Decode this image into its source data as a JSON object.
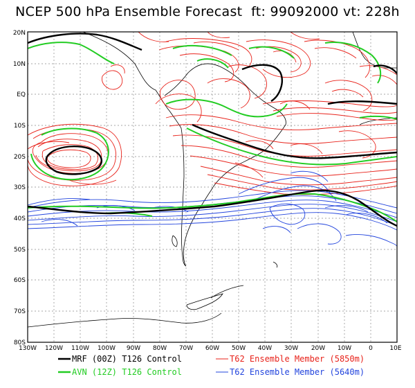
{
  "title": "NCEP 500 hPa Ensemble Forecast  ft: 99092000 vt: 228h",
  "lat_labels": [
    "20N",
    "10N",
    "EQ",
    "10S",
    "20S",
    "30S",
    "40S",
    "50S",
    "60S",
    "70S",
    "80S"
  ],
  "lon_labels": [
    "130W",
    "120W",
    "110W",
    "100W",
    "90W",
    "80W",
    "70W",
    "60W",
    "50W",
    "40W",
    "30W",
    "20W",
    "10W",
    "0",
    "10E"
  ],
  "lat_range": [
    -80,
    20
  ],
  "lon_range": [
    -130,
    10
  ],
  "colors": {
    "mrf": "#000000",
    "avn": "#22cc22",
    "t62_5850": "#e8221a",
    "t62_5640": "#2244dd",
    "coast": "#000000",
    "grid": "#888888"
  },
  "legend": [
    {
      "label": "MRF (00Z) T126 Control",
      "color": "#000000"
    },
    {
      "label": "T62 Ensemble Member (5850m)",
      "color": "#e8221a"
    },
    {
      "label": "AVN (12Z) T126 Control",
      "color": "#22cc22"
    },
    {
      "label": "T62 Ensemble Member (5640m)",
      "color": "#2244dd"
    }
  ]
}
